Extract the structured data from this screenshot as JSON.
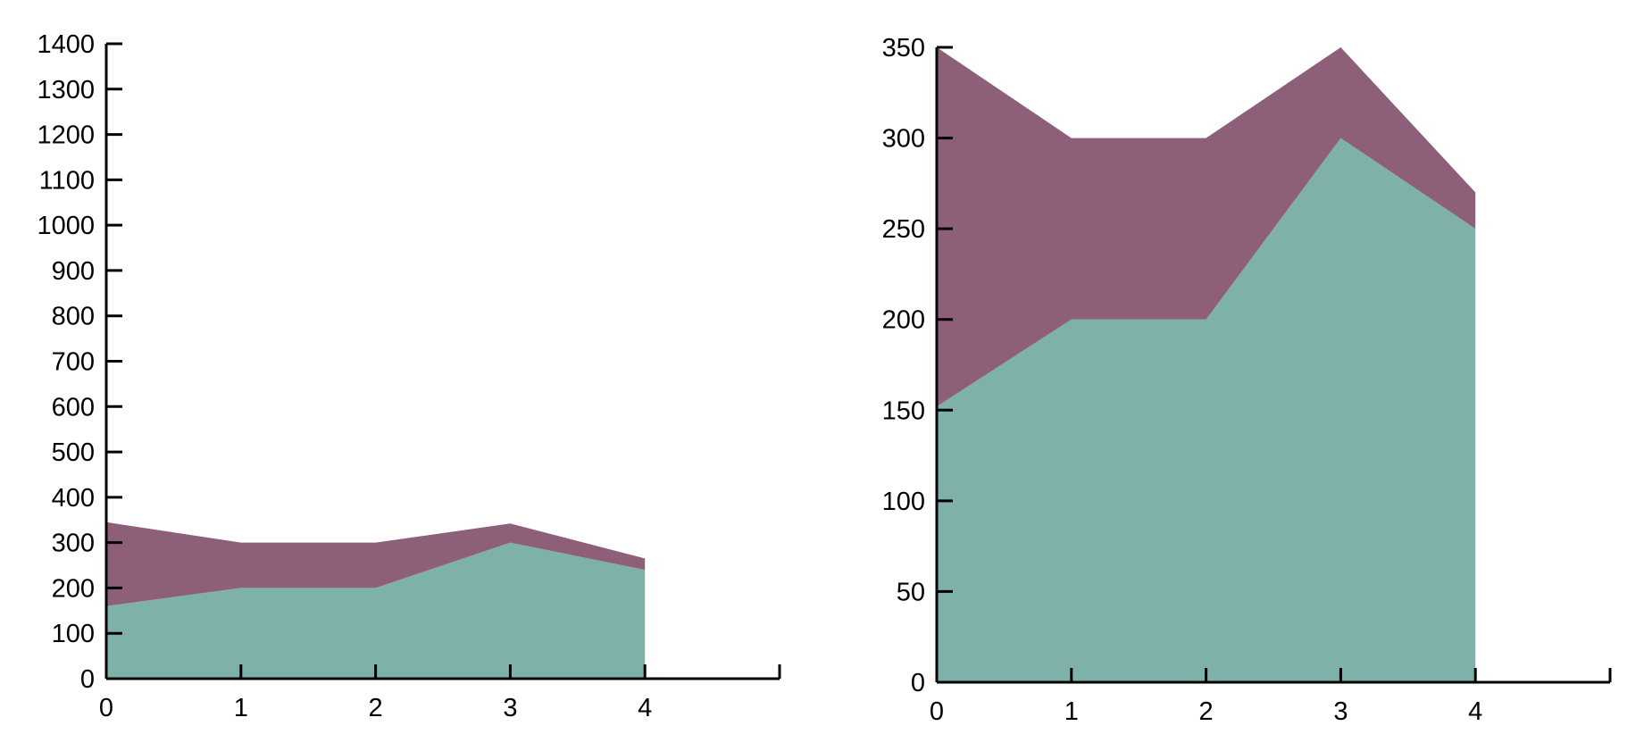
{
  "colors": {
    "bottom_series": "#7db1a9",
    "top_series": "#8e5f78",
    "axis": "#000000",
    "background": "#ffffff"
  },
  "chart_data": [
    {
      "type": "area",
      "stacked": true,
      "title": "",
      "xlabel": "",
      "ylabel": "",
      "x": [
        0,
        1,
        2,
        3,
        4
      ],
      "x_ticks": [
        "0",
        "1",
        "2",
        "3",
        "4"
      ],
      "xlim": [
        0,
        5
      ],
      "y_ticks": [
        "0",
        "100",
        "200",
        "300",
        "400",
        "500",
        "600",
        "700",
        "800",
        "900",
        "1000",
        "1100",
        "1200",
        "1300",
        "1400"
      ],
      "ylim": [
        0,
        1400
      ],
      "grid": false,
      "legend": false,
      "series": [
        {
          "values": [
            160,
            200,
            200,
            300,
            240
          ]
        },
        {
          "values": [
            185,
            100,
            100,
            42,
            25
          ]
        }
      ]
    },
    {
      "type": "area",
      "stacked": true,
      "title": "",
      "xlabel": "",
      "ylabel": "",
      "x": [
        0,
        1,
        2,
        3,
        4
      ],
      "x_ticks": [
        "0",
        "1",
        "2",
        "3",
        "4"
      ],
      "xlim": [
        0,
        5
      ],
      "y_ticks": [
        "0",
        "50",
        "100",
        "150",
        "200",
        "250",
        "300",
        "350"
      ],
      "ylim": [
        0,
        350
      ],
      "grid": false,
      "legend": false,
      "series": [
        {
          "values": [
            152,
            200,
            200,
            300,
            250
          ]
        },
        {
          "values": [
            198,
            100,
            100,
            50,
            20
          ]
        }
      ]
    }
  ]
}
